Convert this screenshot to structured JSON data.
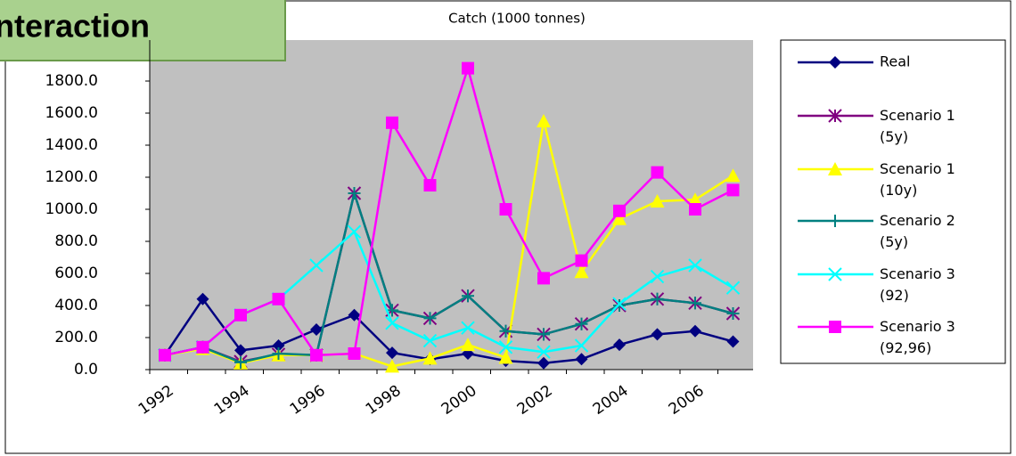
{
  "badge": "nteraction",
  "chart_data": {
    "type": "line",
    "title": "Catch (1000 tonnes)",
    "categories": [
      "1992",
      null,
      "1994",
      null,
      "1996",
      null,
      "1998",
      null,
      "2000",
      null,
      "2002",
      null,
      "2004",
      null,
      "2006",
      null
    ],
    "series": [
      {
        "name": "Real",
        "color": "#000080",
        "marker": "diamond",
        "values": [
          90,
          440,
          120,
          150,
          250,
          340,
          105,
          65,
          100,
          55,
          40,
          65,
          155,
          220,
          240,
          175
        ]
      },
      {
        "name": "Scenario 1 (5y)",
        "color": "#800080",
        "marker": "asterisk",
        "values": [
          90,
          140,
          50,
          95,
          90,
          1100,
          370,
          320,
          460,
          240,
          220,
          285,
          400,
          440,
          415,
          350
        ]
      },
      {
        "name": "Scenario 1 (10y)",
        "color": "#ffff00",
        "marker": "triangle",
        "values": [
          90,
          130,
          40,
          90,
          90,
          100,
          20,
          70,
          155,
          75,
          1550,
          610,
          940,
          1050,
          1060,
          1210
        ]
      },
      {
        "name": "Scenario 2 (5y)",
        "color": "#008080",
        "marker": "plus",
        "values": [
          90,
          140,
          45,
          100,
          90,
          1100,
          370,
          320,
          460,
          240,
          220,
          285,
          400,
          440,
          415,
          350
        ]
      },
      {
        "name": "Scenario 3 (92)",
        "color": "#00ffff",
        "marker": "x",
        "values": [
          90,
          140,
          340,
          440,
          650,
          860,
          290,
          180,
          260,
          140,
          110,
          150,
          410,
          580,
          650,
          510
        ]
      },
      {
        "name": "Scenario 3 (92,96)",
        "color": "#ff00ff",
        "marker": "square",
        "values": [
          90,
          140,
          340,
          440,
          90,
          100,
          1540,
          1150,
          1880,
          1000,
          570,
          680,
          990,
          1230,
          1000,
          1120
        ]
      }
    ],
    "ylim": [
      0,
      2000
    ],
    "yticks": [
      {
        "value": 0,
        "label": "0.0"
      },
      {
        "value": 200,
        "label": "200.0"
      },
      {
        "value": 400,
        "label": "400.0"
      },
      {
        "value": 600,
        "label": "600.0"
      },
      {
        "value": 800,
        "label": "800.0"
      },
      {
        "value": 1000,
        "label": "1000.0"
      },
      {
        "value": 1200,
        "label": "1200.0"
      },
      {
        "value": 1400,
        "label": "1400.0"
      },
      {
        "value": 1600,
        "label": "1600.0"
      },
      {
        "value": 1800,
        "label": "1800.0"
      }
    ],
    "legend": "right"
  }
}
